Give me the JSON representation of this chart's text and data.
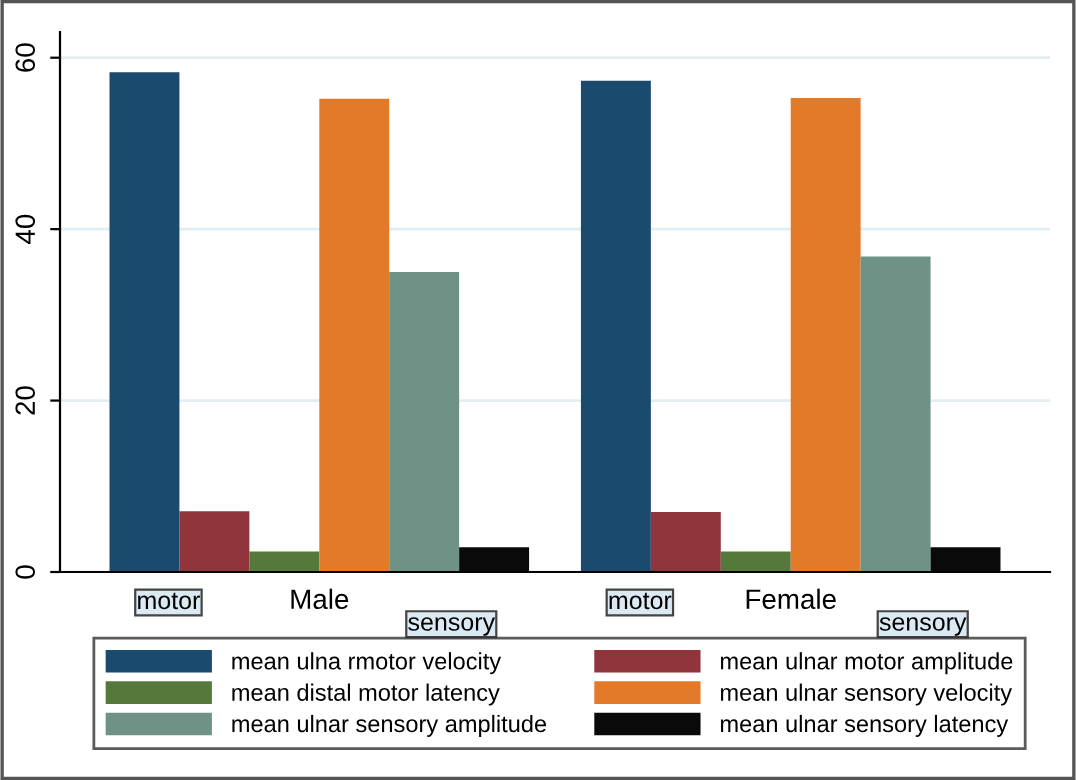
{
  "chart_data": {
    "type": "bar",
    "categories": [
      "Male",
      "Female"
    ],
    "series": [
      {
        "name": "mean ulna rmotor velocity",
        "color": "#1a4a6e",
        "values": [
          58.3,
          57.3
        ]
      },
      {
        "name": "mean ulnar motor amplitude",
        "color": "#90353b",
        "values": [
          7.1,
          7.0
        ]
      },
      {
        "name": "mean distal motor latency",
        "color": "#55793a",
        "values": [
          2.4,
          2.4
        ]
      },
      {
        "name": "mean ulnar sensory velocity",
        "color": "#e37a2a",
        "values": [
          55.2,
          55.3
        ]
      },
      {
        "name": "mean ulnar sensory amplitude",
        "color": "#6e9285",
        "values": [
          35.0,
          36.8
        ]
      },
      {
        "name": "mean ulnar sensory latency",
        "color": "#0a0a0a",
        "values": [
          2.9,
          2.9
        ]
      }
    ],
    "annotations": [
      "motor",
      "sensory",
      "motor",
      "sensory"
    ],
    "ylim": [
      0,
      63
    ],
    "yticks": [
      0,
      20,
      40,
      60
    ],
    "grid": "y",
    "legend": "bottom"
  }
}
